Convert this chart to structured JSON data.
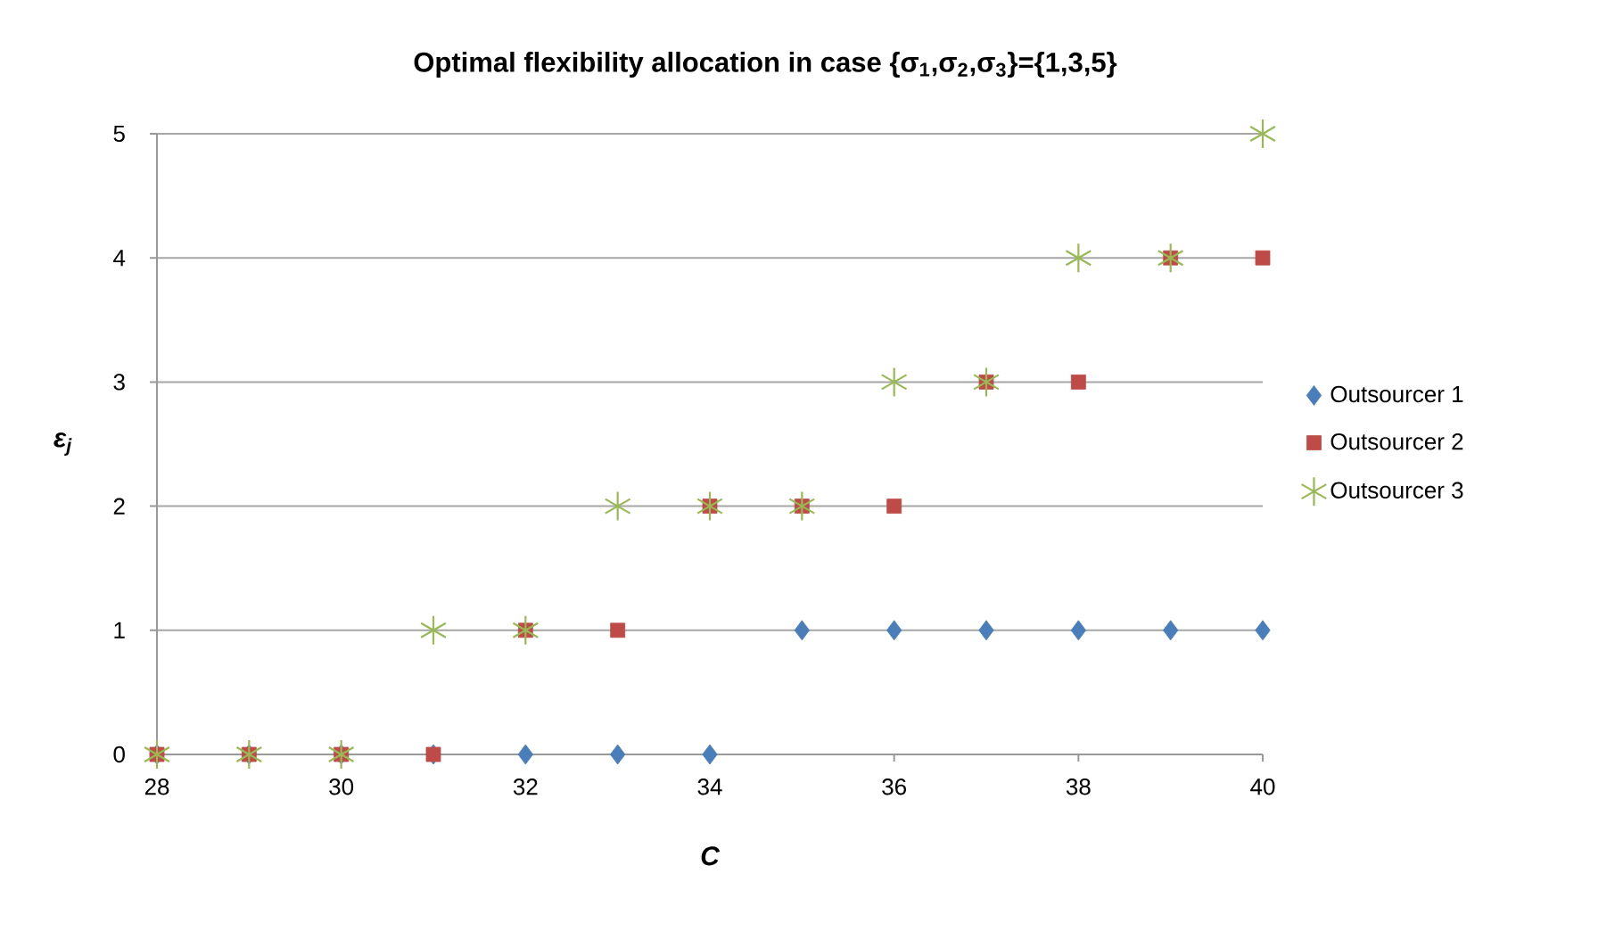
{
  "chart_data": {
    "type": "scatter",
    "title": "Optimal flexibility allocation in case {σ$_{1}$,σ$_{2}$,σ$_{3}$}={1,3,5}",
    "xlabel": "C",
    "ylabel": "ε$_{j}$",
    "x": [
      28,
      29,
      30,
      31,
      32,
      33,
      34,
      35,
      36,
      37,
      38,
      39,
      40
    ],
    "series": [
      {
        "name": "Outsourcer 1",
        "color": "#4a7ebb",
        "marker": "diamond",
        "values": [
          0,
          0,
          0,
          0,
          0,
          0,
          0,
          1,
          1,
          1,
          1,
          1,
          1
        ]
      },
      {
        "name": "Outsourcer 2",
        "color": "#be4b48",
        "marker": "square",
        "values": [
          0,
          0,
          0,
          0,
          1,
          1,
          2,
          2,
          2,
          3,
          3,
          4,
          4
        ]
      },
      {
        "name": "Outsourcer 3",
        "color": "#98b954",
        "marker": "cross",
        "values": [
          0,
          0,
          0,
          1,
          1,
          2,
          2,
          2,
          3,
          3,
          4,
          4,
          5
        ]
      }
    ],
    "xlim": [
      28,
      40
    ],
    "xticks": [
      28,
      30,
      32,
      34,
      36,
      38,
      40
    ],
    "ylim": [
      0,
      5
    ],
    "yticks": [
      0,
      1,
      2,
      3,
      4,
      5
    ],
    "grid": "y",
    "legend": "right"
  }
}
